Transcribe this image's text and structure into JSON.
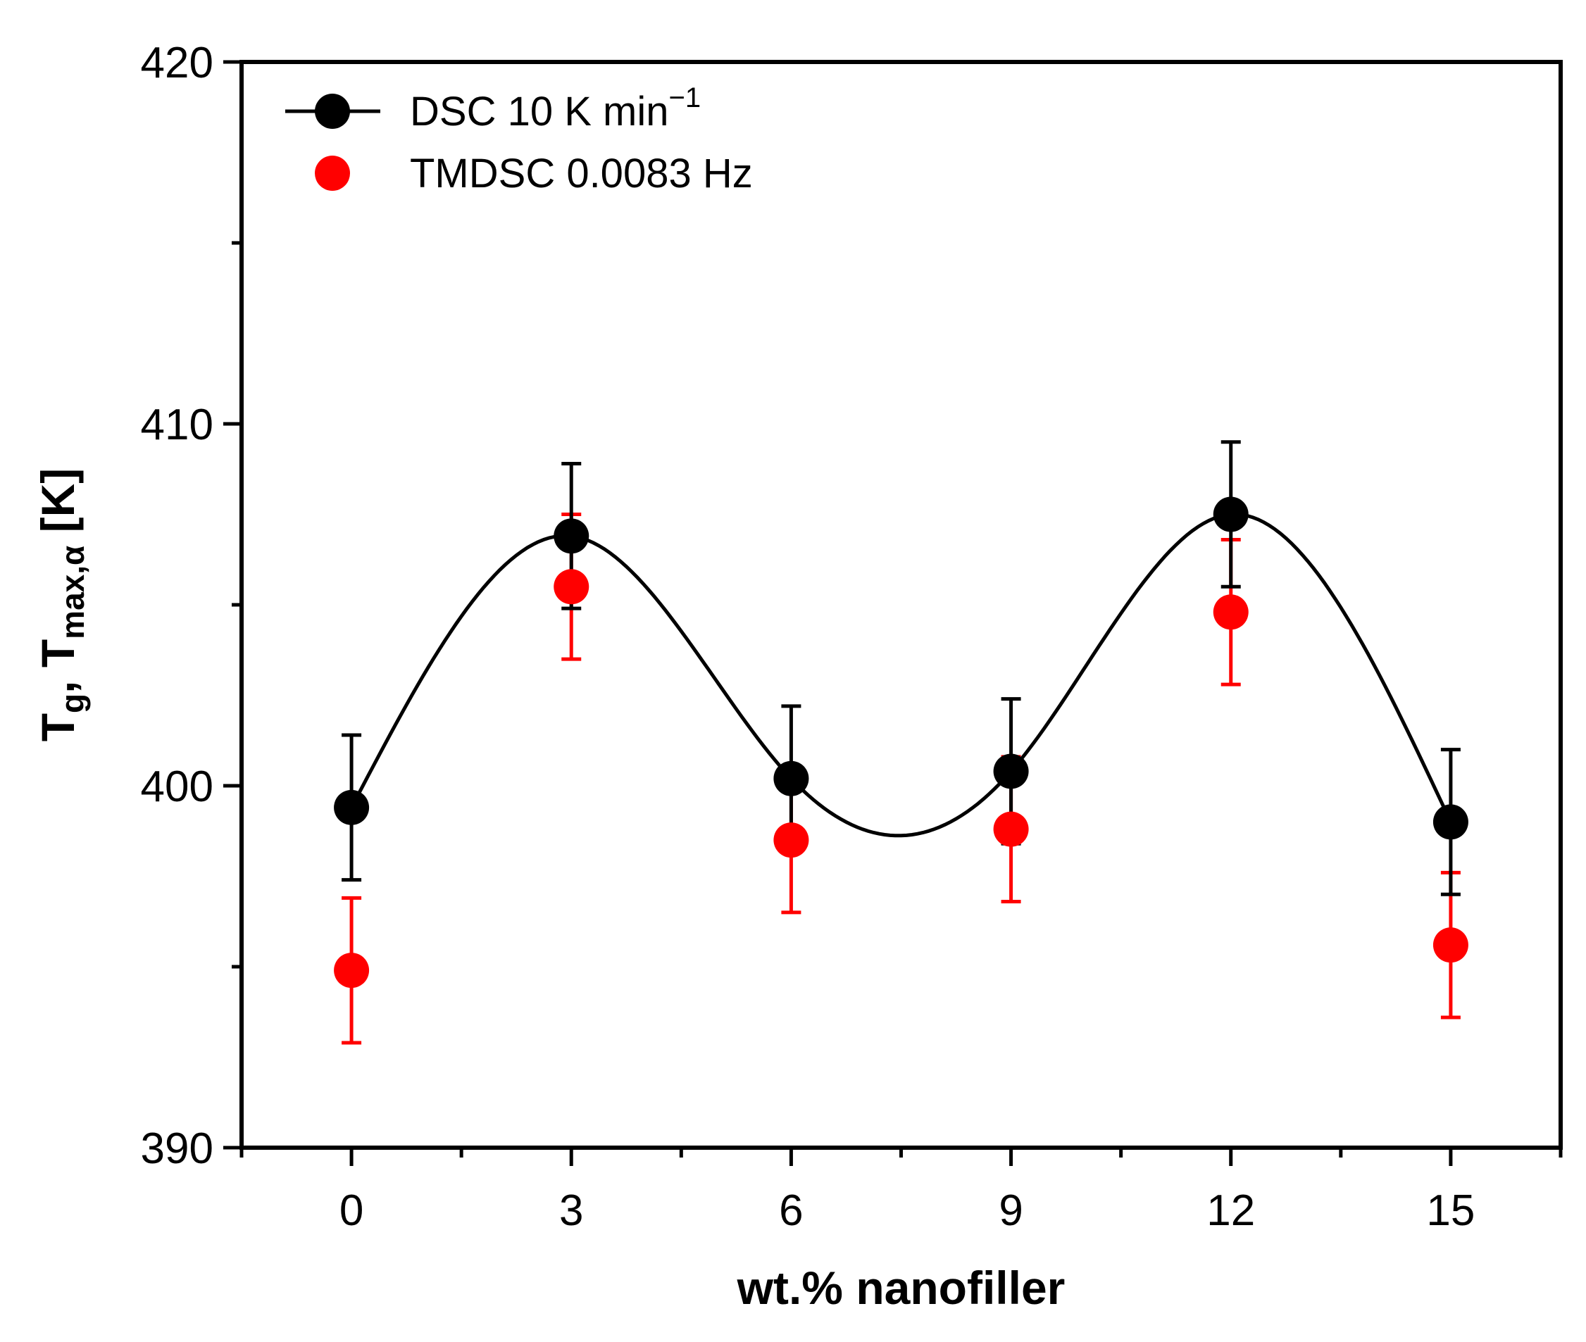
{
  "chart_data": {
    "type": "scatter",
    "xlabel": "wt.% nanofiller",
    "ylabel": {
      "parts": [
        {
          "text": "T",
          "kind": "normal"
        },
        {
          "text": "g",
          "kind": "sub"
        },
        {
          "text": ", T",
          "kind": "normal"
        },
        {
          "text": "max,α",
          "kind": "sub"
        },
        {
          "text": " [K]",
          "kind": "normal"
        }
      ]
    },
    "xlim": [
      -1.5,
      16.5
    ],
    "ylim": [
      390,
      420
    ],
    "x_ticks": [
      0,
      3,
      6,
      9,
      12,
      15
    ],
    "x_tick_labels": [
      "0",
      "3",
      "6",
      "9",
      "12",
      "15"
    ],
    "x_minor_ticks": [
      -1.5,
      1.5,
      4.5,
      7.5,
      10.5,
      13.5,
      16.5
    ],
    "y_ticks": [
      390,
      400,
      410,
      420
    ],
    "y_tick_labels": [
      "390",
      "400",
      "410",
      "420"
    ],
    "y_minor_ticks": [
      395,
      405,
      415
    ],
    "legend_position": "top-left",
    "series": [
      {
        "name": "DSC 10 K min",
        "name_sup": "−1",
        "color": "#000000",
        "marker": "circle",
        "line": "spline",
        "x": [
          0,
          3,
          6,
          9,
          12,
          15
        ],
        "y": [
          399.4,
          406.9,
          400.2,
          400.4,
          407.5,
          399.0
        ],
        "err": [
          2.0,
          2.0,
          2.0,
          2.0,
          2.0,
          2.0
        ]
      },
      {
        "name": "TMDSC 0.0083 Hz",
        "color": "#ff0000",
        "marker": "circle",
        "line": "none",
        "x": [
          0,
          3,
          6,
          9,
          12,
          15
        ],
        "y": [
          394.9,
          405.5,
          398.5,
          398.8,
          404.8,
          395.6
        ],
        "err": [
          2.0,
          2.0,
          2.0,
          2.0,
          2.0,
          2.0
        ]
      }
    ]
  }
}
